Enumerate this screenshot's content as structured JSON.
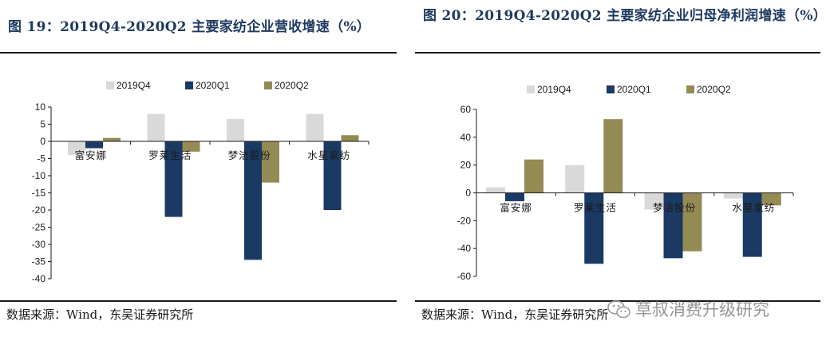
{
  "colors": {
    "2019Q4": "#d9d9d9",
    "2020Q1": "#1b3a63",
    "2020Q2": "#948a54",
    "title": "#1f3a5f"
  },
  "left": {
    "title": "图 19：2019Q4-2020Q2 主要家纺企业营收增速（%）",
    "source": "数据来源：Wind，东吴证券研究所",
    "chart_data": {
      "type": "bar",
      "title": "2019Q4-2020Q2 主要家纺企业营收增速（%）",
      "categories": [
        "富安娜",
        "罗莱生活",
        "梦洁股份",
        "水星家纺"
      ],
      "series": [
        {
          "name": "2019Q4",
          "values": [
            -4,
            8,
            6.5,
            8
          ]
        },
        {
          "name": "2020Q1",
          "values": [
            -2,
            -22,
            -34.5,
            -20
          ]
        },
        {
          "name": "2020Q2",
          "values": [
            1,
            -3,
            -12,
            1.8
          ]
        }
      ],
      "ylim": [
        -40,
        10
      ],
      "yticks": [
        10,
        5,
        0,
        -5,
        -10,
        -15,
        -20,
        -25,
        -30,
        -35,
        -40
      ],
      "xlabel": "",
      "ylabel": "",
      "legend": "top",
      "grid": false
    }
  },
  "right": {
    "title": "图 20：2019Q4-2020Q2 主要家纺企业归母净利润增速（%）",
    "source": "数据来源：Wind，东吴证券研究所",
    "chart_data": {
      "type": "bar",
      "title": "2019Q4-2020Q2 主要家纺企业归母净利润增速（%）",
      "categories": [
        "富安娜",
        "罗莱生活",
        "梦洁股份",
        "水星家纺"
      ],
      "series": [
        {
          "name": "2019Q4",
          "values": [
            4,
            20,
            -12,
            -4
          ]
        },
        {
          "name": "2020Q1",
          "values": [
            -6,
            -51,
            -47,
            -46
          ]
        },
        {
          "name": "2020Q2",
          "values": [
            24,
            53,
            -42,
            -9
          ]
        }
      ],
      "ylim": [
        -60,
        60
      ],
      "yticks": [
        60,
        40,
        20,
        0,
        -20,
        -40,
        -60
      ],
      "xlabel": "",
      "ylabel": "",
      "legend": "top",
      "grid": false
    }
  },
  "watermark": {
    "text": "草叔消费升级研究",
    "icon": "wechat-icon"
  }
}
